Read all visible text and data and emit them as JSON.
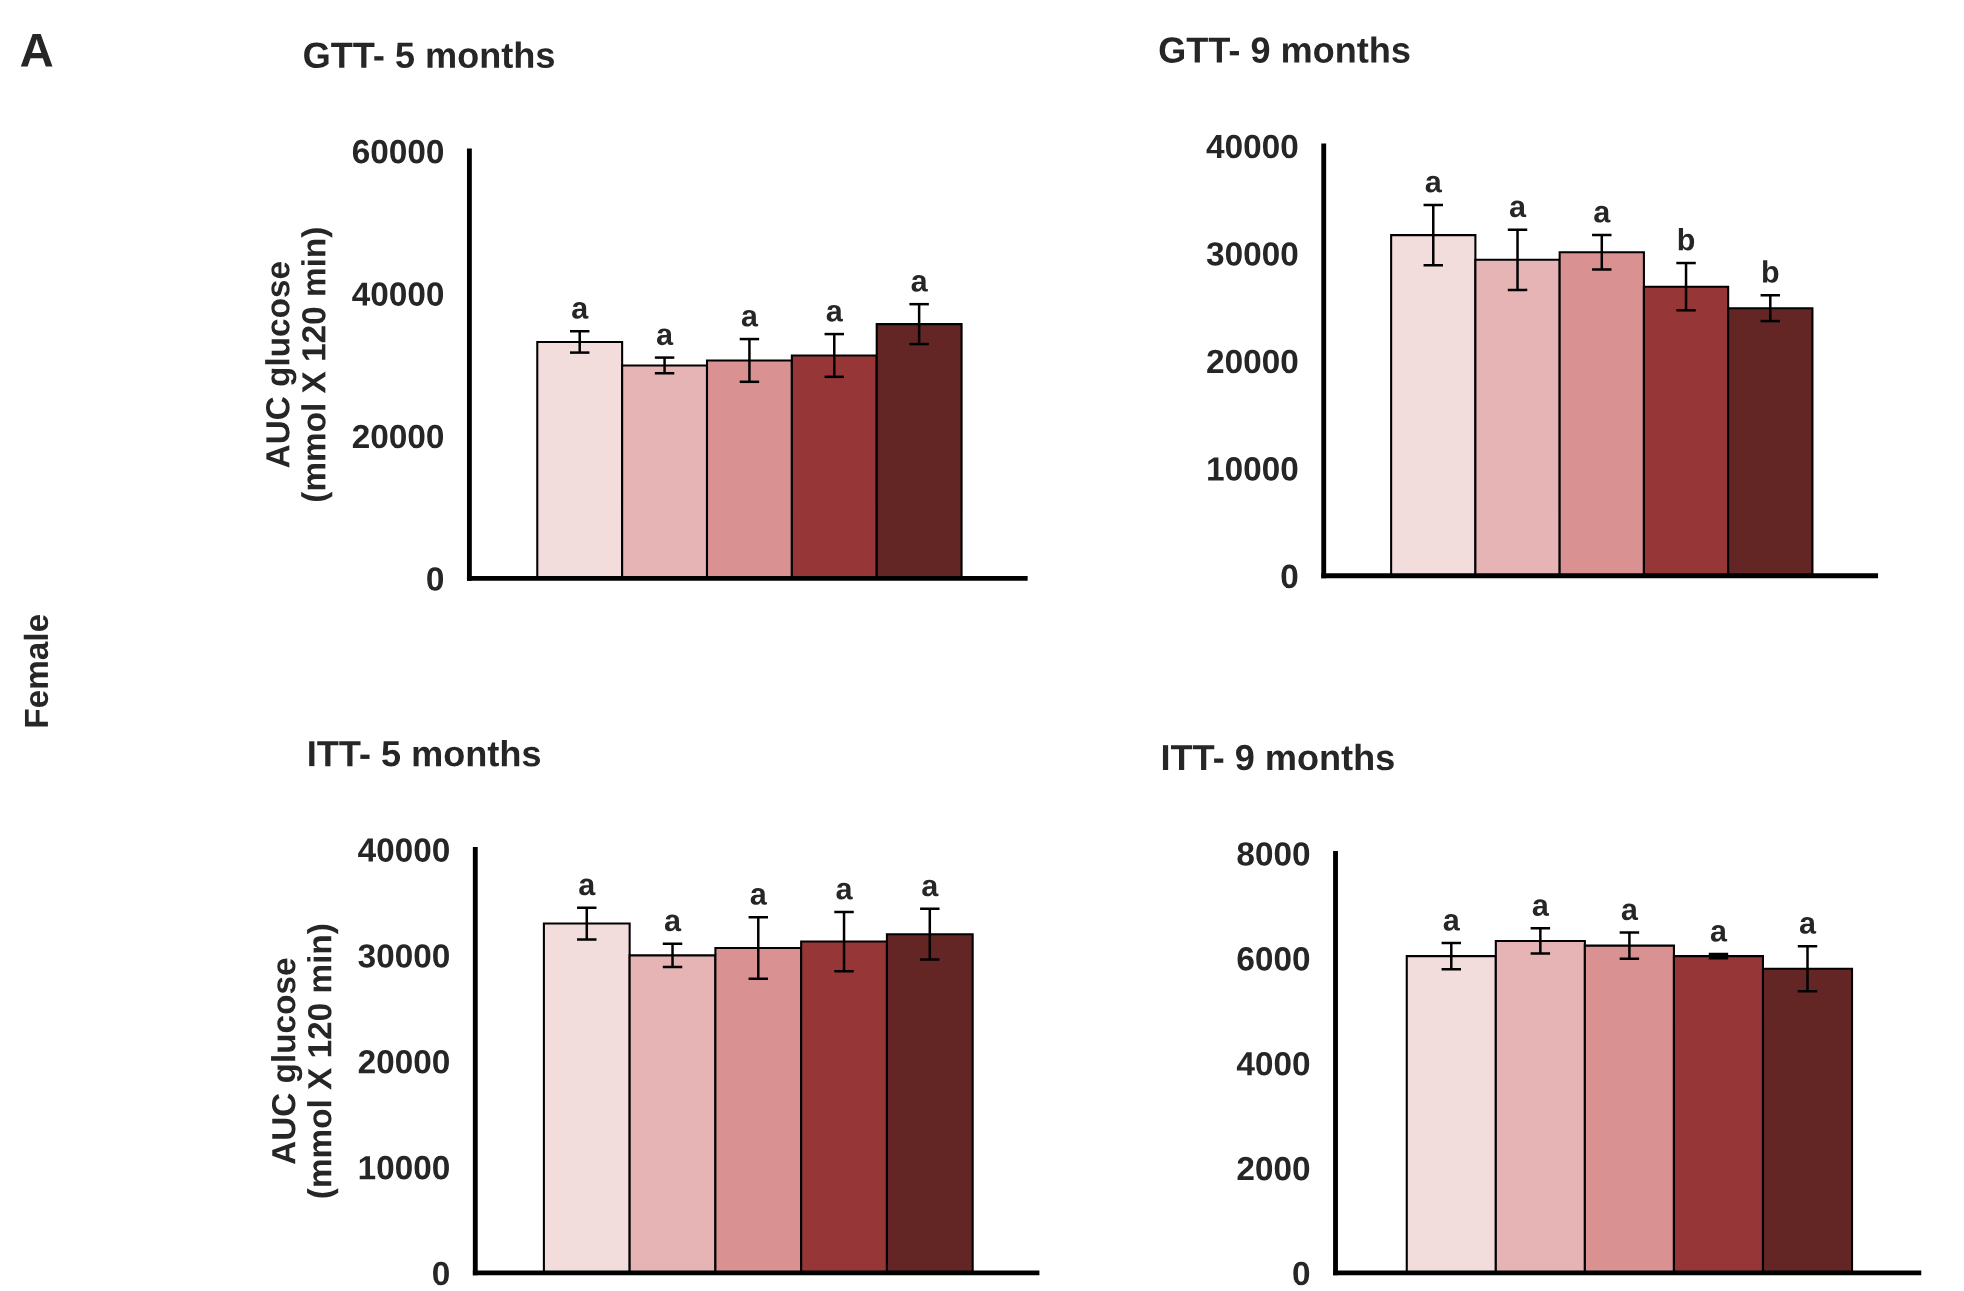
{
  "chart_data": [
    {
      "type": "bar",
      "title": "GTT- 5 months",
      "ylabel": "AUC glucose\n(mmol X 120 min)",
      "categories": [
        null,
        null,
        null,
        null,
        null
      ],
      "values": [
        33200,
        29900,
        30600,
        31300,
        35700
      ],
      "errors": [
        1500,
        1100,
        3000,
        3000,
        2800
      ],
      "colors": [
        "#f2dcdc",
        "#e6b4b4",
        "#d99191",
        "#963636",
        "#642525"
      ],
      "value_labels": [
        "a",
        "a",
        "a",
        "a",
        "a"
      ],
      "ylim": [
        0,
        60000
      ],
      "yticks": [
        0,
        20000,
        40000,
        60000
      ],
      "annotations": [
        "A",
        "Female"
      ]
    },
    {
      "type": "bar",
      "title": "GTT- 9 months",
      "categories": [
        null,
        null,
        null,
        null,
        null
      ],
      "values": [
        31700,
        29400,
        30100,
        26900,
        24900
      ],
      "errors": [
        2800,
        2800,
        1600,
        2200,
        1200
      ],
      "colors": [
        "#f2dcdc",
        "#e6b4b4",
        "#d99191",
        "#963636",
        "#642525"
      ],
      "value_labels": [
        "a",
        "a",
        "a",
        "b",
        "b"
      ],
      "ylim": [
        0,
        40000
      ],
      "yticks": [
        0,
        10000,
        20000,
        30000,
        40000
      ]
    },
    {
      "type": "bar",
      "title": "ITT- 5 months",
      "ylabel": "AUC glucose\n(mmol X 120 min)",
      "categories": [
        null,
        null,
        null,
        null,
        null
      ],
      "values": [
        33000,
        30000,
        30700,
        31300,
        32000
      ],
      "errors": [
        1500,
        1100,
        2900,
        2800,
        2400
      ],
      "colors": [
        "#f2dcdc",
        "#e6b4b4",
        "#d99191",
        "#963636",
        "#642525"
      ],
      "value_labels": [
        "a",
        "a",
        "a",
        "a",
        "a"
      ],
      "ylim": [
        0,
        40000
      ],
      "yticks": [
        0,
        10000,
        20000,
        30000,
        40000
      ]
    },
    {
      "type": "bar",
      "title": "ITT- 9 months",
      "categories": [
        null,
        null,
        null,
        null,
        null
      ],
      "values": [
        6040,
        6330,
        6240,
        6040,
        5800
      ],
      "errors": [
        250,
        240,
        250,
        40,
        430
      ],
      "colors": [
        "#f2dcdc",
        "#e6b4b4",
        "#d99191",
        "#963636",
        "#642525"
      ],
      "value_labels": [
        "a",
        "a",
        "a",
        "a",
        "a"
      ],
      "ylim": [
        0,
        8000
      ],
      "yticks": [
        0,
        2000,
        4000,
        6000,
        8000
      ]
    }
  ]
}
